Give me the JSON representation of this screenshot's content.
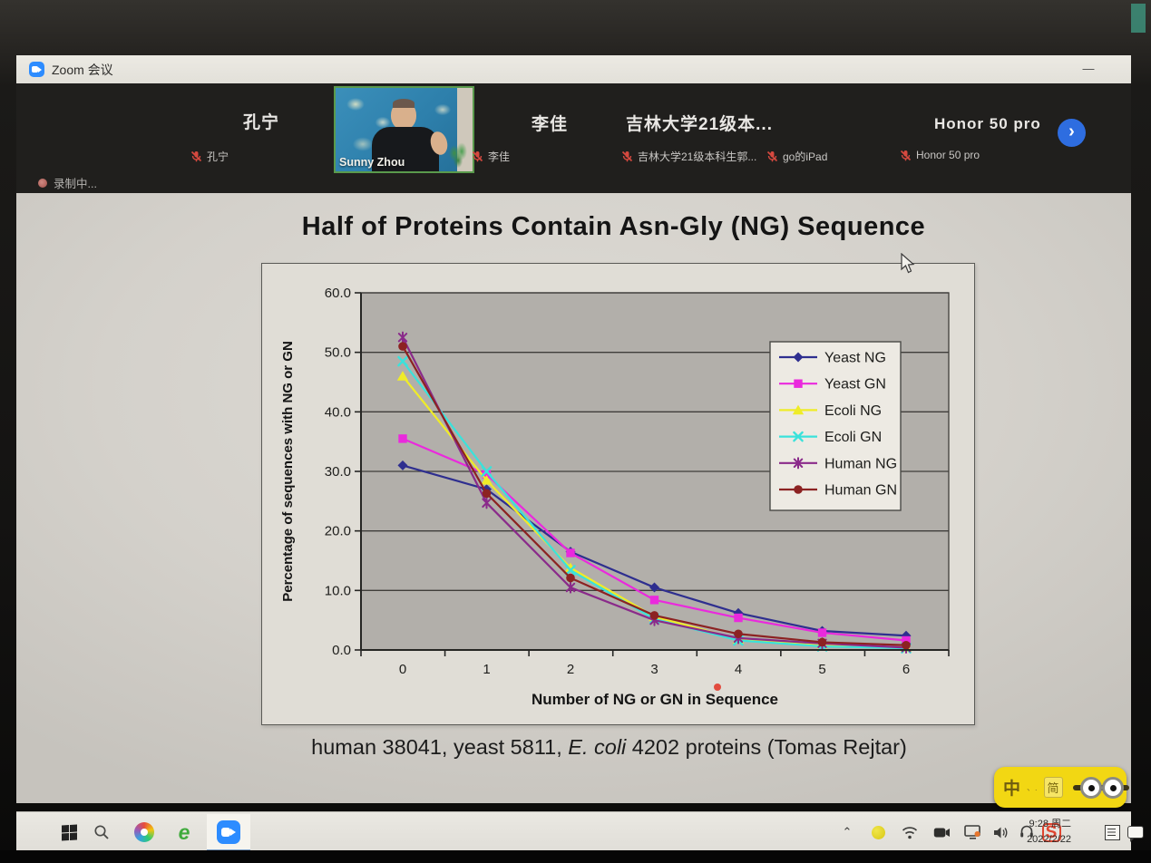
{
  "window": {
    "title": "Zoom 会议",
    "minimize_glyph": "—"
  },
  "meeting": {
    "participants_large": [
      "孔宁",
      "李佳",
      "吉林大学21级本...",
      "Honor 50 pro"
    ],
    "video_name": "Sunny Zhou",
    "muted": [
      "孔宁",
      "李佳",
      "吉林大学21级本科生郭...",
      "go的iPad",
      "Honor 50 pro"
    ],
    "recording_label": "录制中...",
    "next_arrow": "›"
  },
  "slide": {
    "caption": {
      "pre": "human 38041, yeast 5811, ",
      "italic": "E. coli",
      "post": " 4202 proteins (Tomas Rejtar)"
    }
  },
  "chart_data": {
    "type": "line",
    "title": "Half of Proteins Contain Asn-Gly (NG) Sequence",
    "xlabel": "Number of NG or GN in Sequence",
    "ylabel": "Percentage of sequences with NG or GN",
    "x": [
      0,
      1,
      2,
      3,
      4,
      5,
      6
    ],
    "ylim": [
      0,
      60
    ],
    "ytick_labels": [
      "0.0",
      "10.0",
      "20.0",
      "30.0",
      "40.0",
      "50.0",
      "60.0"
    ],
    "grid": true,
    "legend_position": "top-right-inside",
    "plot_bg": "#b2afaa",
    "series": [
      {
        "name": "Yeast NG",
        "color": "#2e2e8f",
        "marker": "diamond",
        "values": [
          31.0,
          27.0,
          16.5,
          10.5,
          6.2,
          3.2,
          2.4
        ]
      },
      {
        "name": "Yeast GN",
        "color": "#ea29dd",
        "marker": "square",
        "values": [
          35.5,
          29.5,
          16.3,
          8.4,
          5.4,
          2.9,
          1.6
        ]
      },
      {
        "name": "Ecoli NG",
        "color": "#efec28",
        "marker": "triangle",
        "values": [
          46.0,
          28.5,
          13.8,
          5.6,
          1.8,
          0.7,
          0.4
        ]
      },
      {
        "name": "Ecoli GN",
        "color": "#3ae2db",
        "marker": "x",
        "values": [
          48.5,
          30.0,
          13.4,
          5.2,
          1.6,
          0.6,
          0.3
        ]
      },
      {
        "name": "Human NG",
        "color": "#8a2a8a",
        "marker": "star",
        "values": [
          52.5,
          24.7,
          10.5,
          5.0,
          2.0,
          1.1,
          0.4
        ]
      },
      {
        "name": "Human GN",
        "color": "#8c2222",
        "marker": "circle",
        "values": [
          51.0,
          26.3,
          12.1,
          5.8,
          2.7,
          1.3,
          0.8
        ]
      }
    ]
  },
  "ime": {
    "zh": "中",
    "marks": "、.",
    "jian": "简"
  },
  "taskbar": {
    "ie_glyph": "e",
    "sogou_glyph": "S",
    "tray_chevron": "⌃",
    "clock_time": "9:28 周二",
    "clock_date": "2022/2/22"
  }
}
